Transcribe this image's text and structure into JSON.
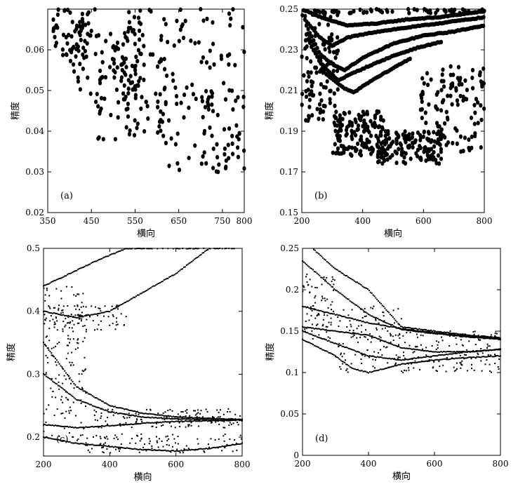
{
  "chart_data": [
    {
      "type": "scatter",
      "panel_label": "(a)",
      "xlabel": "横向",
      "ylabel": "精度",
      "xlim": [
        350,
        800
      ],
      "ylim": [
        0.02,
        0.07
      ],
      "xticks": [
        350,
        450,
        550,
        650,
        750,
        800
      ],
      "yticks": [
        0.02,
        0.03,
        0.04,
        0.05,
        0.06
      ],
      "ytick_labels": [
        "0.02",
        "0.03",
        "0.04",
        "0.05",
        "0.06"
      ],
      "clusters": [
        {
          "x": [
            360,
            460
          ],
          "y": [
            0.058,
            0.07
          ],
          "n": 55
        },
        {
          "x": [
            400,
            560
          ],
          "y": [
            0.048,
            0.068
          ],
          "n": 70
        },
        {
          "x": [
            460,
            620
          ],
          "y": [
            0.038,
            0.058
          ],
          "n": 65
        },
        {
          "x": [
            520,
            700
          ],
          "y": [
            0.043,
            0.07
          ],
          "n": 70
        },
        {
          "x": [
            620,
            800
          ],
          "y": [
            0.03,
            0.05
          ],
          "n": 55
        },
        {
          "x": [
            700,
            800
          ],
          "y": [
            0.03,
            0.07
          ],
          "n": 45
        }
      ]
    },
    {
      "type": "scatter",
      "panel_label": "(b)",
      "xlabel": "横向",
      "ylabel": "精度",
      "xlim": [
        200,
        800
      ],
      "ylim": [
        0.15,
        0.25
      ],
      "xticks": [
        200,
        400,
        600,
        800
      ],
      "yticks": [
        0.15,
        0.17,
        0.19,
        0.21,
        0.23,
        0.25
      ],
      "ytick_labels": [
        "0.15",
        "0.17",
        "0.19",
        "0.21",
        "0.23",
        "0.25"
      ],
      "curves": [
        {
          "x": [
            200,
            280,
            350,
            450,
            550,
            650,
            750,
            800
          ],
          "y": [
            0.25,
            0.245,
            0.242,
            0.243,
            0.245,
            0.246,
            0.248,
            0.249
          ]
        },
        {
          "x": [
            210,
            260,
            300,
            350,
            450,
            550,
            650,
            800
          ],
          "y": [
            0.245,
            0.236,
            0.232,
            0.236,
            0.239,
            0.241,
            0.243,
            0.246
          ]
        },
        {
          "x": [
            215,
            260,
            300,
            340,
            400,
            500,
            600,
            700,
            800
          ],
          "y": [
            0.242,
            0.228,
            0.223,
            0.22,
            0.226,
            0.233,
            0.237,
            0.239,
            0.242
          ]
        },
        {
          "x": [
            220,
            270,
            320,
            360,
            420,
            500,
            580,
            660
          ],
          "y": [
            0.238,
            0.222,
            0.215,
            0.218,
            0.222,
            0.227,
            0.231,
            0.234
          ]
        },
        {
          "x": [
            220,
            280,
            340,
            370,
            420,
            500,
            560
          ],
          "y": [
            0.235,
            0.218,
            0.211,
            0.209,
            0.214,
            0.221,
            0.226
          ]
        }
      ],
      "clusters": [
        {
          "x": [
            200,
            320
          ],
          "y": [
            0.195,
            0.25
          ],
          "n": 110
        },
        {
          "x": [
            300,
            470
          ],
          "y": [
            0.178,
            0.2
          ],
          "n": 140
        },
        {
          "x": [
            450,
            660
          ],
          "y": [
            0.174,
            0.19
          ],
          "n": 150
        },
        {
          "x": [
            590,
            800
          ],
          "y": [
            0.178,
            0.222
          ],
          "n": 120
        },
        {
          "x": [
            240,
            800
          ],
          "y": [
            0.248,
            0.25
          ],
          "n": 55
        }
      ]
    },
    {
      "type": "scatter",
      "panel_label": "(c)",
      "xlabel": "横向",
      "ylabel": "精度",
      "xlim": [
        200,
        800
      ],
      "ylim": [
        0.17,
        0.5
      ],
      "xticks": [
        200,
        400,
        600,
        800
      ],
      "yticks": [
        0.2,
        0.3,
        0.4,
        0.5
      ],
      "ytick_labels": [
        "0.2",
        "0.3",
        "0.4",
        "0.5"
      ],
      "curves": [
        {
          "x": [
            200,
            280,
            360,
            450,
            550,
            650,
            800
          ],
          "y": [
            0.44,
            0.46,
            0.48,
            0.5,
            0.5,
            0.5,
            0.5
          ]
        },
        {
          "x": [
            200,
            300,
            400,
            500,
            600,
            700
          ],
          "y": [
            0.4,
            0.39,
            0.4,
            0.43,
            0.46,
            0.5
          ]
        },
        {
          "x": [
            200,
            300,
            400,
            500,
            600,
            700,
            800
          ],
          "y": [
            0.35,
            0.28,
            0.25,
            0.238,
            0.232,
            0.23,
            0.228
          ]
        },
        {
          "x": [
            200,
            300,
            400,
            500,
            600,
            700,
            800
          ],
          "y": [
            0.3,
            0.26,
            0.24,
            0.232,
            0.229,
            0.228,
            0.227
          ]
        },
        {
          "x": [
            200,
            300,
            400,
            500,
            600,
            700,
            800
          ],
          "y": [
            0.22,
            0.215,
            0.218,
            0.222,
            0.225,
            0.226,
            0.227
          ]
        },
        {
          "x": [
            200,
            300,
            400,
            500,
            600,
            700,
            800
          ],
          "y": [
            0.2,
            0.19,
            0.185,
            0.18,
            0.178,
            0.182,
            0.19
          ]
        }
      ],
      "clusters": [
        {
          "x": [
            200,
            330
          ],
          "y": [
            0.2,
            0.44
          ],
          "n": 150
        },
        {
          "x": [
            200,
            450
          ],
          "y": [
            0.37,
            0.41
          ],
          "n": 90
        },
        {
          "x": [
            300,
            800
          ],
          "y": [
            0.175,
            0.205
          ],
          "n": 110
        },
        {
          "x": [
            350,
            800
          ],
          "y": [
            0.215,
            0.245
          ],
          "n": 140
        }
      ]
    },
    {
      "type": "scatter",
      "panel_label": "(d)",
      "xlabel": "横向",
      "ylabel": "精度",
      "xlim": [
        200,
        800
      ],
      "ylim": [
        0,
        0.25
      ],
      "xticks": [
        200,
        400,
        600,
        800
      ],
      "yticks": [
        0,
        0.05,
        0.1,
        0.15,
        0.2,
        0.25
      ],
      "ytick_labels": [
        "0",
        "0.05",
        "0.1",
        "0.15",
        "0.2",
        "0.25"
      ],
      "curves": [
        {
          "x": [
            230,
            300,
            400,
            500,
            600,
            700,
            800
          ],
          "y": [
            0.25,
            0.225,
            0.2,
            0.155,
            0.15,
            0.145,
            0.142
          ]
        },
        {
          "x": [
            200,
            300,
            400,
            500,
            600,
            700,
            800
          ],
          "y": [
            0.235,
            0.2,
            0.17,
            0.152,
            0.147,
            0.143,
            0.14
          ]
        },
        {
          "x": [
            200,
            300,
            400,
            500,
            600,
            700,
            800
          ],
          "y": [
            0.18,
            0.17,
            0.16,
            0.153,
            0.148,
            0.144,
            0.141
          ]
        },
        {
          "x": [
            200,
            300,
            400,
            500,
            600,
            700,
            800
          ],
          "y": [
            0.155,
            0.15,
            0.145,
            0.13,
            0.125,
            0.125,
            0.128
          ]
        },
        {
          "x": [
            200,
            300,
            400,
            500,
            600,
            700,
            800
          ],
          "y": [
            0.15,
            0.135,
            0.12,
            0.115,
            0.12,
            0.125,
            0.128
          ]
        },
        {
          "x": [
            200,
            300,
            350,
            400,
            500,
            600,
            700,
            800
          ],
          "y": [
            0.14,
            0.12,
            0.105,
            0.1,
            0.11,
            0.115,
            0.118,
            0.12
          ]
        }
      ],
      "clusters": [
        {
          "x": [
            200,
            300
          ],
          "y": [
            0.14,
            0.22
          ],
          "n": 80
        },
        {
          "x": [
            300,
            500
          ],
          "y": [
            0.1,
            0.18
          ],
          "n": 120
        },
        {
          "x": [
            480,
            800
          ],
          "y": [
            0.1,
            0.15
          ],
          "n": 140
        }
      ]
    }
  ]
}
